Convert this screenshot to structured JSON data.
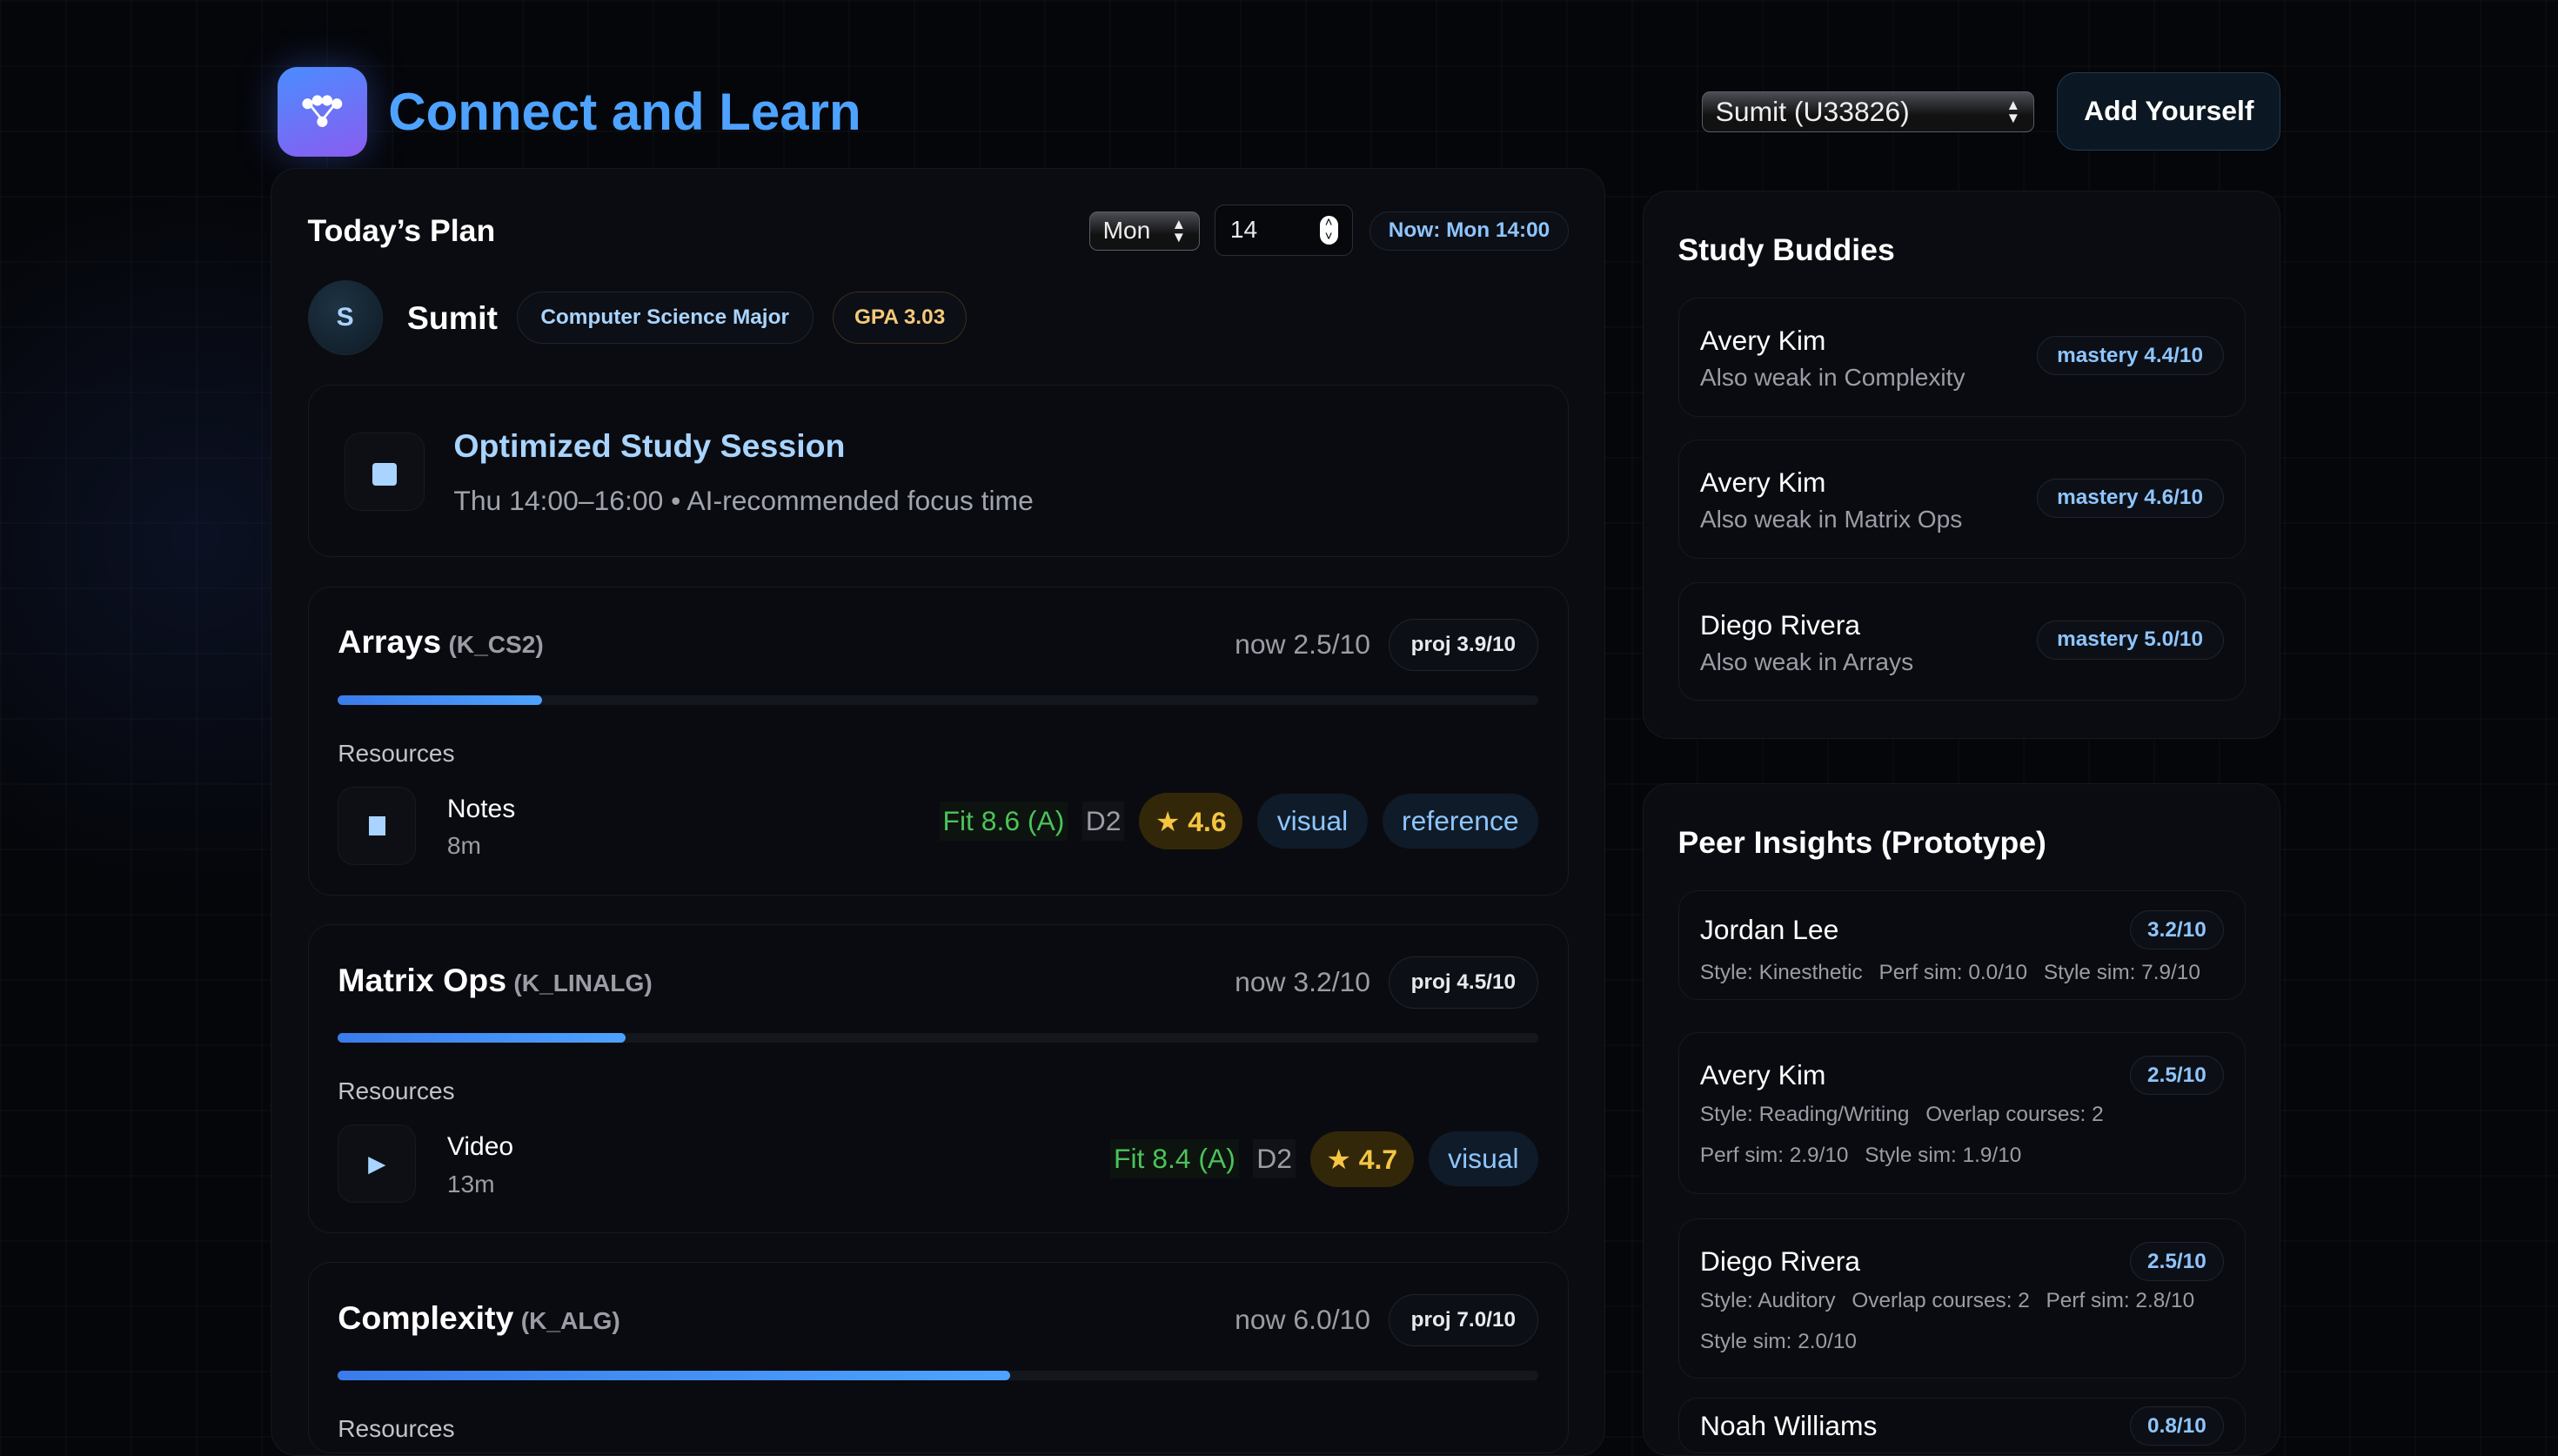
{
  "app": {
    "title": "Connect and Learn",
    "user_select": "Sumit (U33826)",
    "add_button": "Add Yourself"
  },
  "plan": {
    "title": "Today’s Plan",
    "day_select": "Mon",
    "hour_input": "14",
    "now": "Now: Mon 14:00",
    "user": {
      "initial": "S",
      "name": "Sumit",
      "major": "Computer Science Major",
      "gpa": "GPA 3.03"
    },
    "session": {
      "title": "Optimized Study Session",
      "subtitle": "Thu 14:00–16:00 • AI-recommended focus time"
    },
    "resources_label": "Resources",
    "topics": [
      {
        "name": "Arrays",
        "code": "(K_CS2)",
        "now": "now 2.5/10",
        "proj": "proj 3.9/10",
        "progress": 0.17,
        "resource": {
          "icon": "notes-icon",
          "name": "Notes",
          "duration": "8m",
          "fit": "Fit 8.6 (A)",
          "difficulty": "D2",
          "rating": "4.6",
          "tags": [
            "visual",
            "reference"
          ]
        }
      },
      {
        "name": "Matrix Ops",
        "code": "(K_LINALG)",
        "now": "now 3.2/10",
        "proj": "proj 4.5/10",
        "progress": 0.24,
        "resource": {
          "icon": "play-icon",
          "name": "Video",
          "duration": "13m",
          "fit": "Fit 8.4 (A)",
          "difficulty": "D2",
          "rating": "4.7",
          "tags": [
            "visual"
          ]
        }
      },
      {
        "name": "Complexity",
        "code": "(K_ALG)",
        "now": "now 6.0/10",
        "proj": "proj 7.0/10",
        "progress": 0.56
      }
    ]
  },
  "buddies": {
    "title": "Study Buddies",
    "items": [
      {
        "name": "Avery Kim",
        "note": "Also weak in Complexity",
        "mastery": "mastery 4.4/10"
      },
      {
        "name": "Avery Kim",
        "note": "Also weak in Matrix Ops",
        "mastery": "mastery 4.6/10"
      },
      {
        "name": "Diego Rivera",
        "note": "Also weak in Arrays",
        "mastery": "mastery 5.0/10"
      }
    ]
  },
  "peers": {
    "title": "Peer Insights (Prototype)",
    "items": [
      {
        "name": "Jordan Lee",
        "score": "3.2/10",
        "meta": [
          "Style: Kinesthetic",
          "Perf sim: 0.0/10",
          "Style sim: 7.9/10"
        ]
      },
      {
        "name": "Avery Kim",
        "score": "2.5/10",
        "meta": [
          "Style: Reading/Writing",
          "Overlap courses: 2",
          "Perf sim: 2.9/10",
          "Style sim: 1.9/10"
        ]
      },
      {
        "name": "Diego Rivera",
        "score": "2.5/10",
        "meta": [
          "Style: Auditory",
          "Overlap courses: 2",
          "Perf sim: 2.8/10",
          "Style sim: 2.0/10"
        ]
      },
      {
        "name": "Noah Williams",
        "score": "0.8/10",
        "meta": []
      }
    ]
  }
}
